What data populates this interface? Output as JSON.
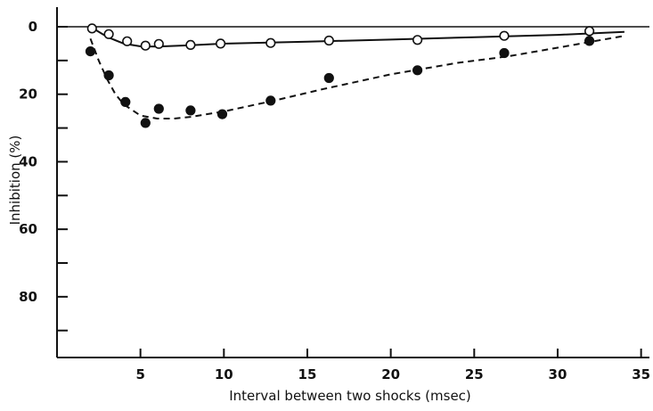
{
  "chart_data": {
    "type": "scatter",
    "xlabel": "Interval between two shocks (msec)",
    "ylabel": "Inhibition (%)",
    "xlim": [
      0,
      35.5
    ],
    "ylim": [
      0,
      98
    ],
    "y_axis_inverted": true,
    "grid": false,
    "legend": "none",
    "x_ticks": [
      5,
      10,
      15,
      20,
      25,
      30,
      35
    ],
    "y_ticks": [
      0,
      20,
      40,
      60,
      80
    ],
    "y_minor_ticks": [
      10,
      30,
      50,
      70,
      90
    ],
    "series": [
      {
        "marker": "open-circle",
        "line_style": "solid",
        "points": [
          {
            "x": 2.1,
            "y": 0.5
          },
          {
            "x": 3.1,
            "y": 2.2
          },
          {
            "x": 4.2,
            "y": 4.3
          },
          {
            "x": 5.3,
            "y": 5.6
          },
          {
            "x": 6.1,
            "y": 5.1
          },
          {
            "x": 8.0,
            "y": 5.4
          },
          {
            "x": 9.8,
            "y": 5.0
          },
          {
            "x": 12.8,
            "y": 4.8
          },
          {
            "x": 16.3,
            "y": 4.1
          },
          {
            "x": 21.6,
            "y": 3.9
          },
          {
            "x": 26.8,
            "y": 2.7
          },
          {
            "x": 31.9,
            "y": 1.3
          }
        ],
        "curve": [
          {
            "x": 2.0,
            "y": 0
          },
          {
            "x": 3.0,
            "y": 3.0
          },
          {
            "x": 4.0,
            "y": 5.0
          },
          {
            "x": 5.0,
            "y": 5.8
          },
          {
            "x": 6.0,
            "y": 5.9
          },
          {
            "x": 8.0,
            "y": 5.5
          },
          {
            "x": 10.0,
            "y": 5.0
          },
          {
            "x": 15.0,
            "y": 4.4
          },
          {
            "x": 20.0,
            "y": 3.8
          },
          {
            "x": 25.0,
            "y": 3.1
          },
          {
            "x": 30.0,
            "y": 2.4
          },
          {
            "x": 34.0,
            "y": 1.5
          }
        ]
      },
      {
        "marker": "filled-circle",
        "line_style": "dashed",
        "points": [
          {
            "x": 2.0,
            "y": 7.3
          },
          {
            "x": 3.1,
            "y": 14.4
          },
          {
            "x": 4.1,
            "y": 22.3
          },
          {
            "x": 5.3,
            "y": 28.5
          },
          {
            "x": 6.1,
            "y": 24.3
          },
          {
            "x": 8.0,
            "y": 24.8
          },
          {
            "x": 9.9,
            "y": 25.9
          },
          {
            "x": 12.8,
            "y": 21.9
          },
          {
            "x": 16.3,
            "y": 15.2
          },
          {
            "x": 21.6,
            "y": 12.9
          },
          {
            "x": 26.8,
            "y": 7.8
          },
          {
            "x": 31.9,
            "y": 4.2
          }
        ],
        "curve": [
          {
            "x": 2.0,
            "y": 3.5
          },
          {
            "x": 2.5,
            "y": 10.0
          },
          {
            "x": 3.0,
            "y": 15.5
          },
          {
            "x": 3.5,
            "y": 20.0
          },
          {
            "x": 4.0,
            "y": 23.0
          },
          {
            "x": 5.0,
            "y": 26.3
          },
          {
            "x": 6.0,
            "y": 27.2
          },
          {
            "x": 7.0,
            "y": 27.2
          },
          {
            "x": 8.0,
            "y": 26.7
          },
          {
            "x": 10.0,
            "y": 25.1
          },
          {
            "x": 13.0,
            "y": 21.9
          },
          {
            "x": 16.0,
            "y": 18.4
          },
          {
            "x": 20.0,
            "y": 14.1
          },
          {
            "x": 24.0,
            "y": 10.7
          },
          {
            "x": 27.0,
            "y": 8.8
          },
          {
            "x": 30.0,
            "y": 6.2
          },
          {
            "x": 34.0,
            "y": 2.7
          }
        ]
      }
    ]
  }
}
